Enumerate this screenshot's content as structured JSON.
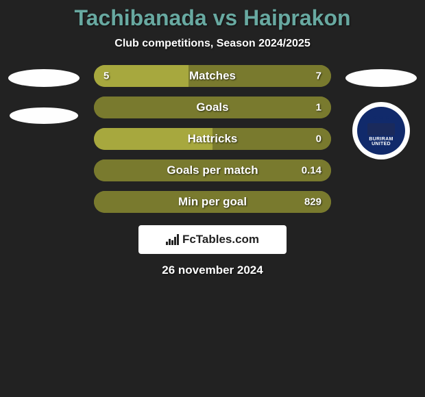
{
  "colors": {
    "background": "#222222",
    "title_color": "#68a9a1",
    "left_fill": "#a7a83e",
    "right_fill": "#797a2e",
    "brand_bg": "#ffffff",
    "text_white": "#ffffff",
    "badge_bg": "#112a6b"
  },
  "title": "Tachibanada vs Haiprakon",
  "subtitle": "Club competitions, Season 2024/2025",
  "bars": [
    {
      "label": "Matches",
      "left_val": "5",
      "right_val": "7",
      "left_pct": 40,
      "right_pct": 60
    },
    {
      "label": "Goals",
      "left_val": "",
      "right_val": "1",
      "left_pct": 0,
      "right_pct": 100
    },
    {
      "label": "Hattricks",
      "left_val": "",
      "right_val": "0",
      "left_pct": 50,
      "right_pct": 50
    },
    {
      "label": "Goals per match",
      "left_val": "",
      "right_val": "0.14",
      "left_pct": 0,
      "right_pct": 100
    },
    {
      "label": "Min per goal",
      "left_val": "",
      "right_val": "829",
      "left_pct": 0,
      "right_pct": 100
    }
  ],
  "brand": "FcTables.com",
  "date": "26 november 2024",
  "right_badge": {
    "line1": "BURIRAM",
    "line2": "UNITED",
    "star_color": "#112a6b"
  }
}
